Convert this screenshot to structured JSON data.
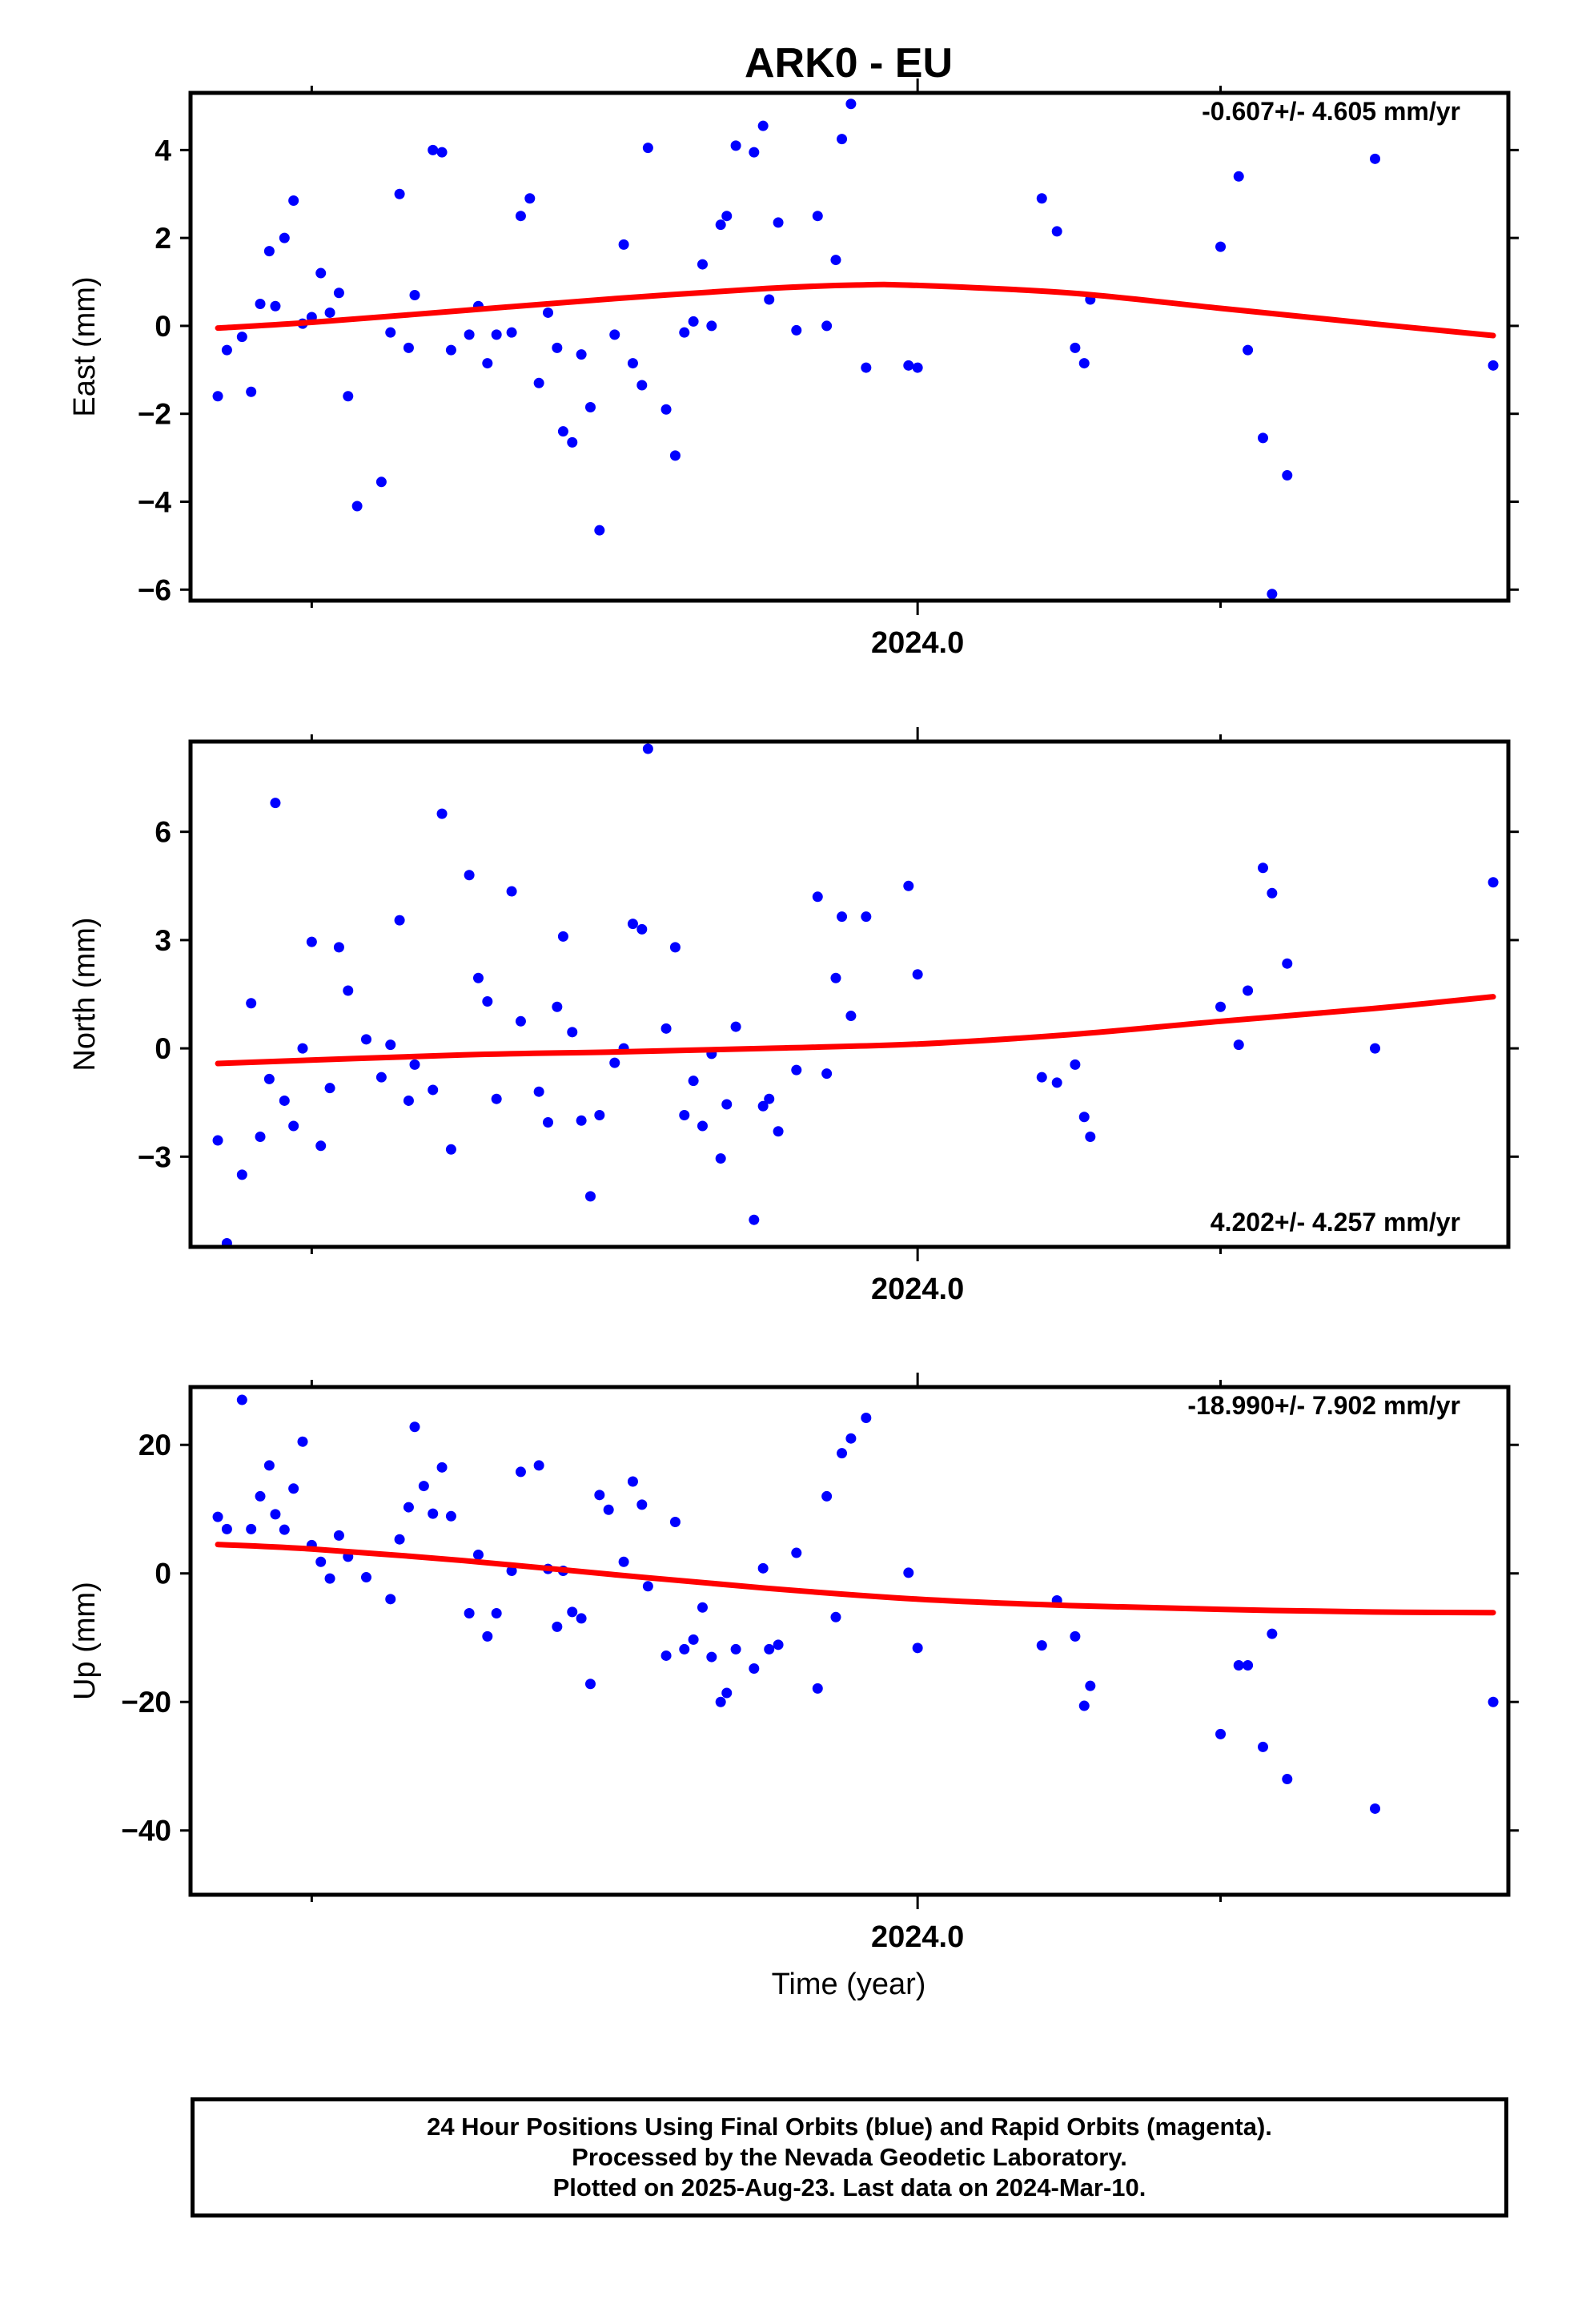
{
  "title": "ARK0 - EU",
  "xlabel": "Time (year)",
  "footer": {
    "line1": "24 Hour Positions Using Final Orbits (blue) and Rapid Orbits (magenta).",
    "line2": "Processed by the Nevada Geodetic Laboratory.",
    "line3": "Plotted on 2025-Aug-23. Last data on 2024-Mar-10."
  },
  "colors": {
    "points": "#0000ff",
    "fit": "#ff0000",
    "frame": "#000000"
  },
  "chart_data": [
    {
      "type": "scatter",
      "ylabel": "East (mm)",
      "rate_label": "-0.607+/- 4.605 mm/yr",
      "rate_position": "top-right",
      "xlim": [
        2023.76,
        2024.195
      ],
      "ylim": [
        -6.25,
        5.3
      ],
      "yticks": [
        4,
        2,
        0,
        -2,
        -4,
        -6
      ],
      "ytick_labels": [
        "4",
        "2",
        "0",
        "−2",
        "−4",
        "−6"
      ],
      "xtick_major": 2024.0,
      "xtick_major_label": "2024.0",
      "xtick_minor": [
        2023.8,
        2024.1
      ],
      "points": [
        [
          2023.769,
          -1.6
        ],
        [
          2023.772,
          -0.55
        ],
        [
          2023.777,
          -0.25
        ],
        [
          2023.78,
          -1.5
        ],
        [
          2023.783,
          0.5
        ],
        [
          2023.786,
          1.7
        ],
        [
          2023.788,
          0.45
        ],
        [
          2023.791,
          2.0
        ],
        [
          2023.794,
          2.85
        ],
        [
          2023.797,
          0.05
        ],
        [
          2023.8,
          0.2
        ],
        [
          2023.803,
          1.2
        ],
        [
          2023.806,
          0.3
        ],
        [
          2023.809,
          0.75
        ],
        [
          2023.812,
          -1.6
        ],
        [
          2023.815,
          -4.1
        ],
        [
          2023.823,
          -3.55
        ],
        [
          2023.826,
          -0.15
        ],
        [
          2023.829,
          3.0
        ],
        [
          2023.832,
          -0.5
        ],
        [
          2023.834,
          0.7
        ],
        [
          2023.84,
          4.0
        ],
        [
          2023.843,
          3.95
        ],
        [
          2023.846,
          -0.55
        ],
        [
          2023.852,
          -0.2
        ],
        [
          2023.855,
          0.45
        ],
        [
          2023.858,
          -0.85
        ],
        [
          2023.861,
          -0.2
        ],
        [
          2023.866,
          -0.15
        ],
        [
          2023.869,
          2.5
        ],
        [
          2023.872,
          2.9
        ],
        [
          2023.875,
          -1.3
        ],
        [
          2023.878,
          0.3
        ],
        [
          2023.881,
          -0.5
        ],
        [
          2023.883,
          -2.4
        ],
        [
          2023.886,
          -2.65
        ],
        [
          2023.889,
          -0.65
        ],
        [
          2023.892,
          -1.85
        ],
        [
          2023.895,
          -4.65
        ],
        [
          2023.9,
          -0.2
        ],
        [
          2023.903,
          1.85
        ],
        [
          2023.906,
          -0.85
        ],
        [
          2023.909,
          -1.35
        ],
        [
          2023.911,
          4.05
        ],
        [
          2023.917,
          -1.9
        ],
        [
          2023.92,
          -2.95
        ],
        [
          2023.923,
          -0.15
        ],
        [
          2023.926,
          0.1
        ],
        [
          2023.929,
          1.4
        ],
        [
          2023.932,
          0.0
        ],
        [
          2023.935,
          2.3
        ],
        [
          2023.937,
          2.5
        ],
        [
          2023.94,
          4.1
        ],
        [
          2023.946,
          3.95
        ],
        [
          2023.949,
          4.55
        ],
        [
          2023.951,
          0.6
        ],
        [
          2023.954,
          2.35
        ],
        [
          2023.96,
          -0.1
        ],
        [
          2023.967,
          2.5
        ],
        [
          2023.97,
          0.0
        ],
        [
          2023.973,
          1.5
        ],
        [
          2023.975,
          4.25
        ],
        [
          2023.978,
          5.05
        ],
        [
          2023.983,
          -0.95
        ],
        [
          2023.997,
          -0.9
        ],
        [
          2024.0,
          -0.95
        ],
        [
          2024.041,
          2.9
        ],
        [
          2024.046,
          2.15
        ],
        [
          2024.052,
          -0.5
        ],
        [
          2024.055,
          -0.85
        ],
        [
          2024.057,
          0.6
        ],
        [
          2024.1,
          1.8
        ],
        [
          2024.106,
          3.4
        ],
        [
          2024.109,
          -0.55
        ],
        [
          2024.114,
          -2.55
        ],
        [
          2024.117,
          -6.1
        ],
        [
          2024.122,
          -3.4
        ],
        [
          2024.151,
          3.8
        ],
        [
          2024.19,
          -0.9
        ]
      ],
      "fit": {
        "x": [
          2023.769,
          2023.8,
          2023.85,
          2023.9,
          2023.95,
          2023.98,
          2024.0,
          2024.05,
          2024.1,
          2024.15,
          2024.19
        ],
        "y": [
          -0.05,
          0.08,
          0.35,
          0.62,
          0.85,
          0.93,
          0.92,
          0.75,
          0.4,
          0.05,
          -0.22
        ]
      }
    },
    {
      "type": "scatter",
      "ylabel": "North (mm)",
      "rate_label": "4.202+/- 4.257 mm/yr",
      "rate_position": "bottom-right",
      "xlim": [
        2023.76,
        2024.195
      ],
      "ylim": [
        -5.5,
        8.5
      ],
      "yticks": [
        6,
        3,
        0,
        -3
      ],
      "ytick_labels": [
        "6",
        "3",
        "0",
        "−3"
      ],
      "xtick_major": 2024.0,
      "xtick_major_label": "2024.0",
      "xtick_minor": [
        2023.8,
        2024.1
      ],
      "points": [
        [
          2023.769,
          -2.55
        ],
        [
          2023.772,
          -5.4
        ],
        [
          2023.777,
          -3.5
        ],
        [
          2023.78,
          1.25
        ],
        [
          2023.783,
          -2.45
        ],
        [
          2023.786,
          -0.85
        ],
        [
          2023.788,
          6.8
        ],
        [
          2023.791,
          -1.45
        ],
        [
          2023.794,
          -2.15
        ],
        [
          2023.797,
          0.0
        ],
        [
          2023.8,
          2.95
        ],
        [
          2023.803,
          -2.7
        ],
        [
          2023.806,
          -1.1
        ],
        [
          2023.809,
          2.8
        ],
        [
          2023.812,
          1.6
        ],
        [
          2023.818,
          0.25
        ],
        [
          2023.823,
          -0.8
        ],
        [
          2023.826,
          0.1
        ],
        [
          2023.829,
          3.55
        ],
        [
          2023.832,
          -1.45
        ],
        [
          2023.834,
          -0.45
        ],
        [
          2023.84,
          -1.15
        ],
        [
          2023.843,
          6.5
        ],
        [
          2023.846,
          -2.8
        ],
        [
          2023.852,
          4.8
        ],
        [
          2023.855,
          1.95
        ],
        [
          2023.858,
          1.3
        ],
        [
          2023.861,
          -1.4
        ],
        [
          2023.866,
          4.35
        ],
        [
          2023.869,
          0.75
        ],
        [
          2023.875,
          -1.2
        ],
        [
          2023.878,
          -2.05
        ],
        [
          2023.881,
          1.15
        ],
        [
          2023.883,
          3.1
        ],
        [
          2023.886,
          0.45
        ],
        [
          2023.889,
          -2.0
        ],
        [
          2023.892,
          -4.1
        ],
        [
          2023.895,
          -1.85
        ],
        [
          2023.9,
          -0.4
        ],
        [
          2023.903,
          0.0
        ],
        [
          2023.906,
          3.45
        ],
        [
          2023.909,
          3.3
        ],
        [
          2023.911,
          8.3
        ],
        [
          2023.917,
          0.55
        ],
        [
          2023.92,
          2.8
        ],
        [
          2023.923,
          -1.85
        ],
        [
          2023.926,
          -0.9
        ],
        [
          2023.929,
          -2.15
        ],
        [
          2023.932,
          -0.15
        ],
        [
          2023.935,
          -3.05
        ],
        [
          2023.937,
          -1.55
        ],
        [
          2023.94,
          0.6
        ],
        [
          2023.946,
          -4.75
        ],
        [
          2023.949,
          -1.6
        ],
        [
          2023.951,
          -1.4
        ],
        [
          2023.954,
          -2.3
        ],
        [
          2023.96,
          -0.6
        ],
        [
          2023.967,
          4.2
        ],
        [
          2023.97,
          -0.7
        ],
        [
          2023.973,
          1.95
        ],
        [
          2023.975,
          3.65
        ],
        [
          2023.978,
          0.9
        ],
        [
          2023.983,
          3.65
        ],
        [
          2023.997,
          4.5
        ],
        [
          2024.0,
          2.05
        ],
        [
          2024.041,
          -0.8
        ],
        [
          2024.046,
          -0.95
        ],
        [
          2024.052,
          -0.45
        ],
        [
          2024.055,
          -1.9
        ],
        [
          2024.057,
          -2.45
        ],
        [
          2024.1,
          1.15
        ],
        [
          2024.106,
          0.1
        ],
        [
          2024.109,
          1.6
        ],
        [
          2024.114,
          5.0
        ],
        [
          2024.117,
          4.3
        ],
        [
          2024.122,
          2.35
        ],
        [
          2024.151,
          0.0
        ],
        [
          2024.19,
          4.6
        ]
      ],
      "fit": {
        "x": [
          2023.769,
          2023.85,
          2023.9,
          2023.95,
          2024.0,
          2024.05,
          2024.1,
          2024.15,
          2024.19
        ],
        "y": [
          -0.42,
          -0.18,
          -0.1,
          0.0,
          0.12,
          0.38,
          0.75,
          1.1,
          1.43
        ]
      }
    },
    {
      "type": "scatter",
      "ylabel": "Up (mm)",
      "rate_label": "-18.990+/- 7.902 mm/yr",
      "rate_position": "top-right",
      "xlim": [
        2023.76,
        2024.195
      ],
      "ylim": [
        -50,
        29
      ],
      "yticks": [
        20,
        0,
        -20,
        -40
      ],
      "ytick_labels": [
        "20",
        "0",
        "−20",
        "−40"
      ],
      "xtick_major": 2024.0,
      "xtick_major_label": "2024.0",
      "xtick_minor": [
        2023.8,
        2024.1
      ],
      "points": [
        [
          2023.769,
          8.8
        ],
        [
          2023.772,
          6.9
        ],
        [
          2023.777,
          27.0
        ],
        [
          2023.78,
          6.9
        ],
        [
          2023.783,
          12.0
        ],
        [
          2023.786,
          16.8
        ],
        [
          2023.788,
          9.2
        ],
        [
          2023.791,
          6.8
        ],
        [
          2023.794,
          13.2
        ],
        [
          2023.797,
          20.5
        ],
        [
          2023.8,
          4.4
        ],
        [
          2023.803,
          1.8
        ],
        [
          2023.806,
          -0.8
        ],
        [
          2023.809,
          5.9
        ],
        [
          2023.812,
          2.6
        ],
        [
          2023.818,
          -0.6
        ],
        [
          2023.826,
          -4.0
        ],
        [
          2023.829,
          5.3
        ],
        [
          2023.832,
          10.3
        ],
        [
          2023.834,
          22.8
        ],
        [
          2023.837,
          13.6
        ],
        [
          2023.84,
          9.3
        ],
        [
          2023.843,
          16.5
        ],
        [
          2023.846,
          8.9
        ],
        [
          2023.852,
          -6.2
        ],
        [
          2023.855,
          2.9
        ],
        [
          2023.858,
          -9.8
        ],
        [
          2023.861,
          -6.2
        ],
        [
          2023.866,
          0.4
        ],
        [
          2023.869,
          15.8
        ],
        [
          2023.875,
          16.8
        ],
        [
          2023.878,
          0.7
        ],
        [
          2023.881,
          -8.3
        ],
        [
          2023.883,
          0.4
        ],
        [
          2023.886,
          -6.0
        ],
        [
          2023.889,
          -7.0
        ],
        [
          2023.892,
          -17.2
        ],
        [
          2023.895,
          12.2
        ],
        [
          2023.898,
          9.9
        ],
        [
          2023.903,
          1.8
        ],
        [
          2023.906,
          14.3
        ],
        [
          2023.909,
          10.7
        ],
        [
          2023.911,
          -2.0
        ],
        [
          2023.917,
          -12.8
        ],
        [
          2023.92,
          8.0
        ],
        [
          2023.923,
          -11.8
        ],
        [
          2023.926,
          -10.3
        ],
        [
          2023.929,
          -5.3
        ],
        [
          2023.932,
          -13.0
        ],
        [
          2023.935,
          -20.0
        ],
        [
          2023.937,
          -18.6
        ],
        [
          2023.94,
          -11.8
        ],
        [
          2023.946,
          -14.8
        ],
        [
          2023.949,
          0.8
        ],
        [
          2023.951,
          -11.8
        ],
        [
          2023.954,
          -11.1
        ],
        [
          2023.96,
          3.2
        ],
        [
          2023.967,
          -17.9
        ],
        [
          2023.97,
          12.0
        ],
        [
          2023.973,
          -6.8
        ],
        [
          2023.975,
          18.7
        ],
        [
          2023.978,
          21.0
        ],
        [
          2023.983,
          24.2
        ],
        [
          2023.997,
          0.1
        ],
        [
          2024.0,
          -11.6
        ],
        [
          2024.041,
          -11.2
        ],
        [
          2024.046,
          -4.2
        ],
        [
          2024.052,
          -9.8
        ],
        [
          2024.055,
          -20.6
        ],
        [
          2024.057,
          -17.5
        ],
        [
          2024.1,
          -25.0
        ],
        [
          2024.106,
          -14.3
        ],
        [
          2024.109,
          -14.3
        ],
        [
          2024.114,
          -27.0
        ],
        [
          2024.117,
          -9.4
        ],
        [
          2024.122,
          -32.0
        ],
        [
          2024.151,
          -36.6
        ],
        [
          2024.19,
          -20.0
        ]
      ],
      "fit": {
        "x": [
          2023.769,
          2023.8,
          2023.85,
          2023.9,
          2023.95,
          2024.0,
          2024.05,
          2024.1,
          2024.15,
          2024.19
        ],
        "y": [
          4.5,
          3.8,
          2.0,
          -0.2,
          -2.3,
          -4.0,
          -5.0,
          -5.6,
          -6.0,
          -6.1
        ]
      }
    }
  ]
}
